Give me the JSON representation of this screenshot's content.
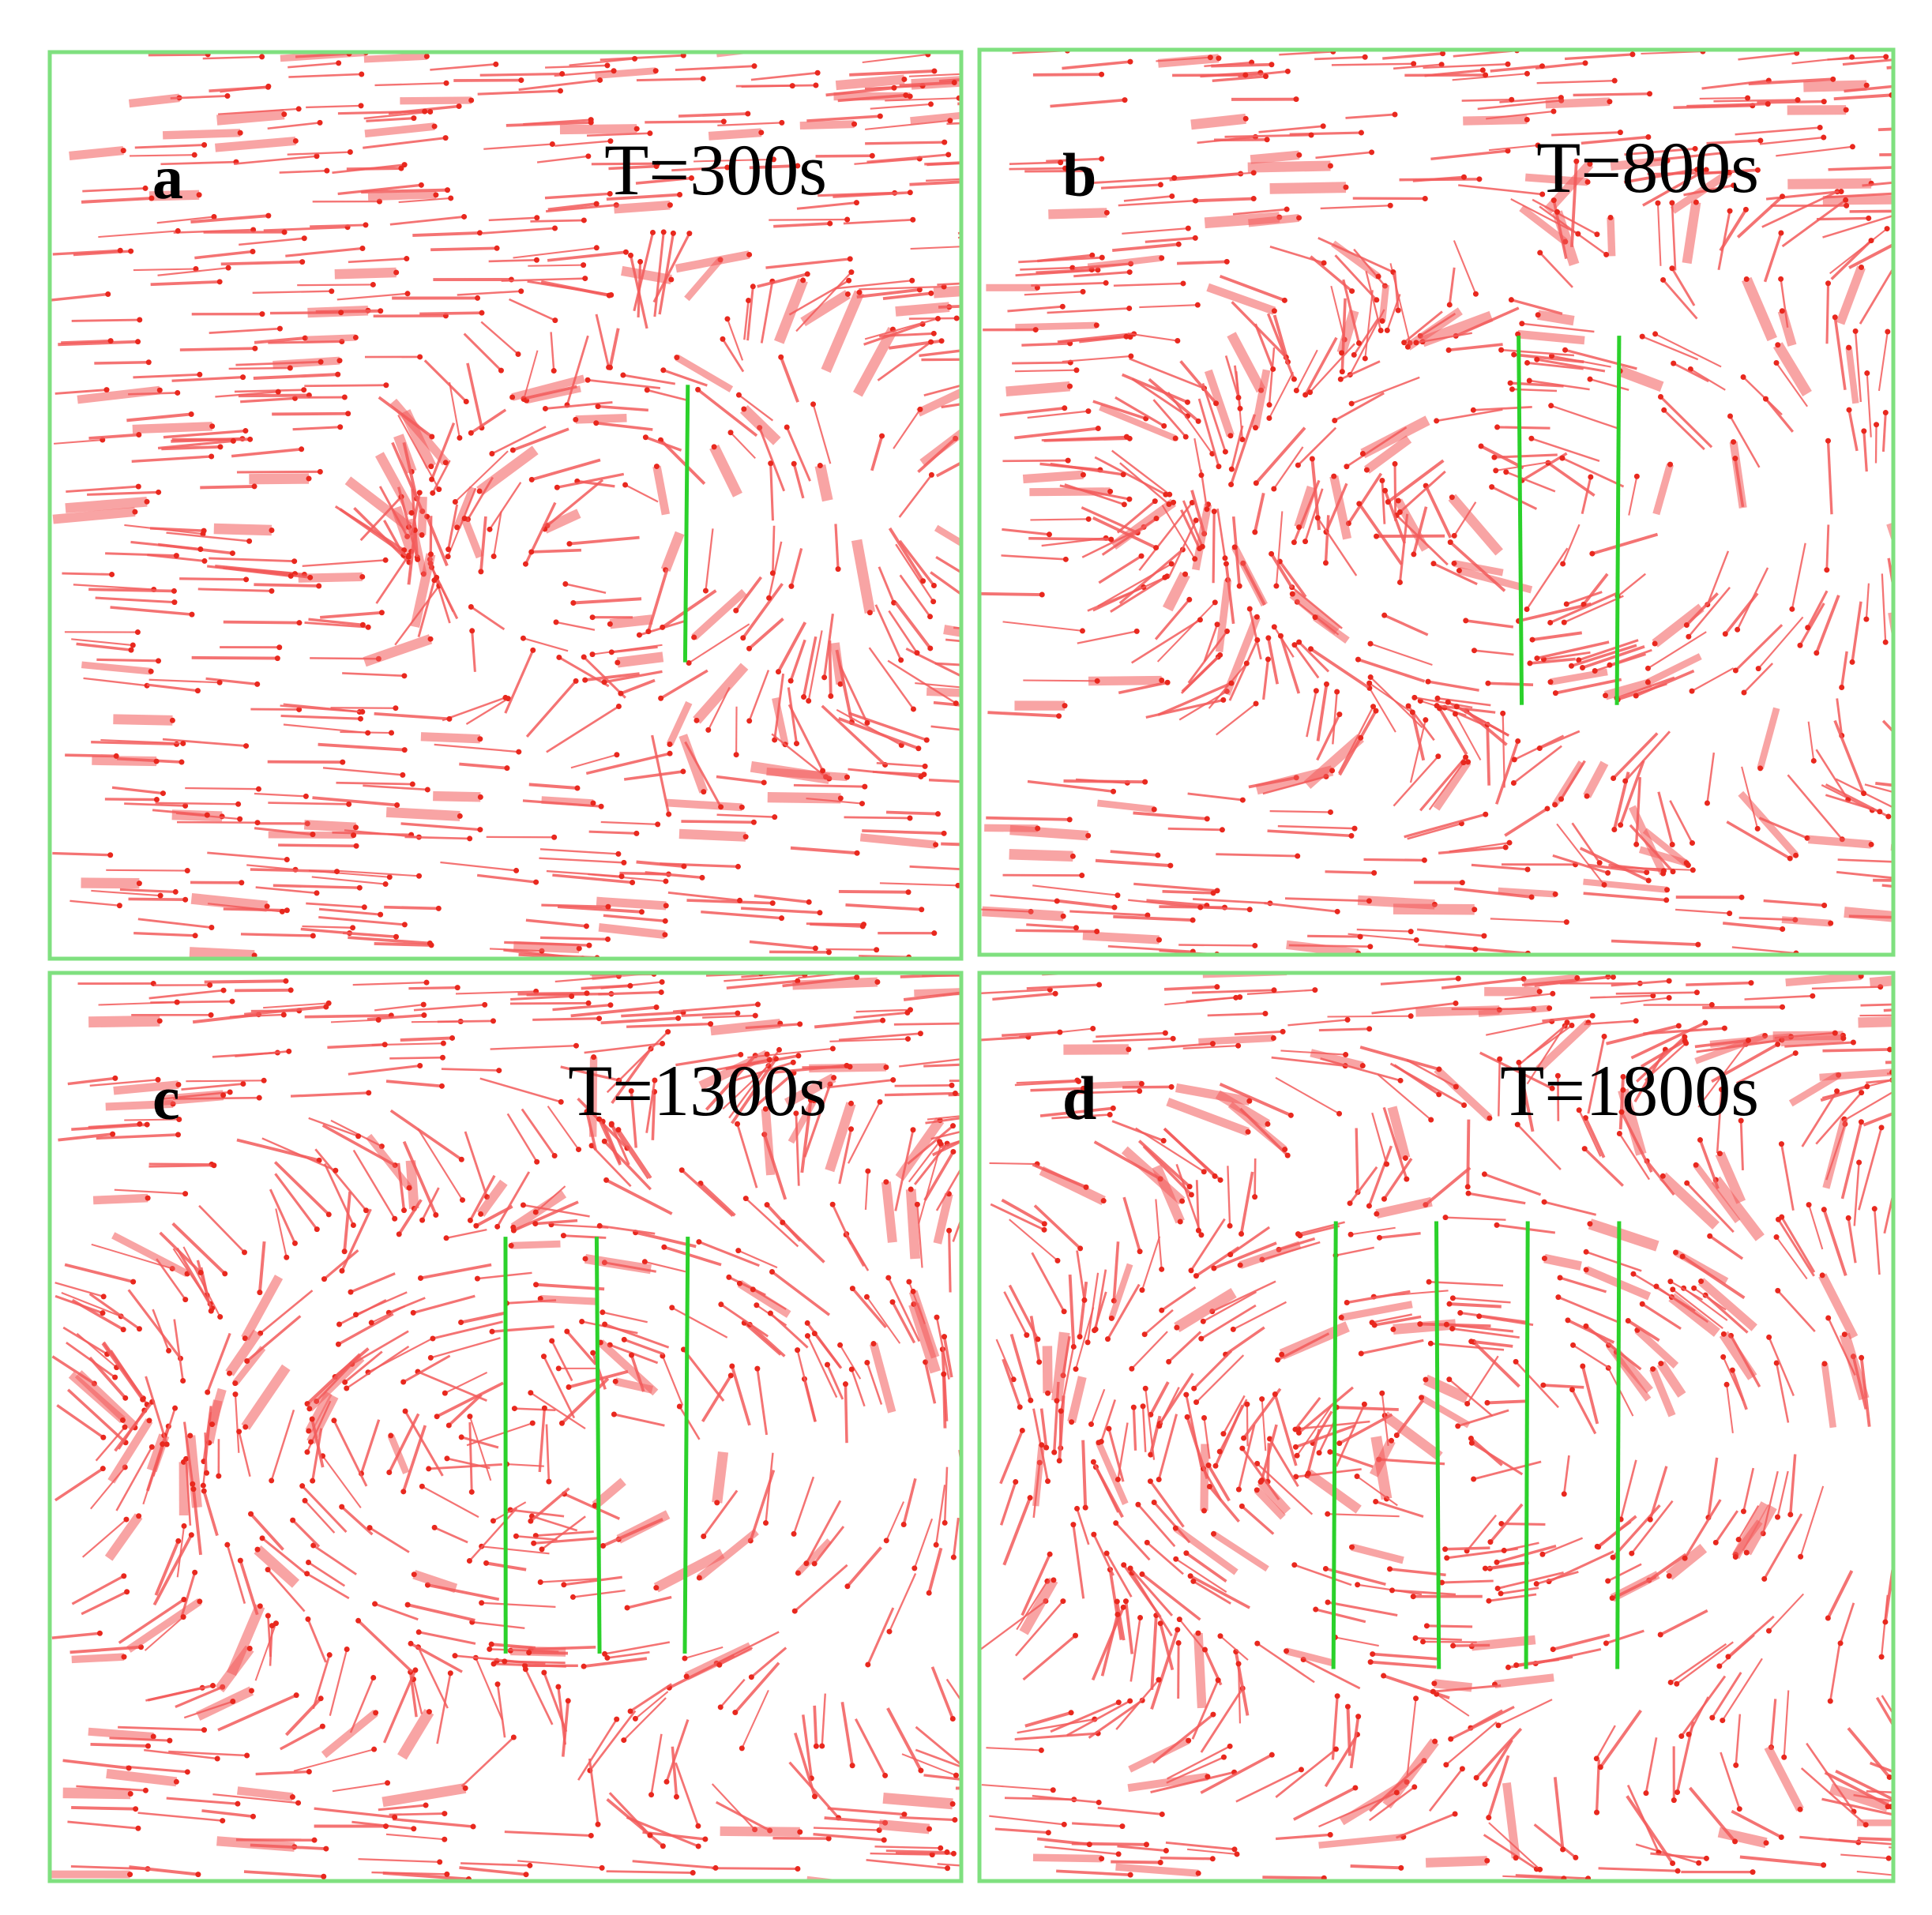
{
  "panels": [
    {
      "label": "a",
      "time": "T=300s"
    },
    {
      "label": "b",
      "time": "T=800s"
    },
    {
      "label": "c",
      "time": "T=1300s"
    },
    {
      "label": "d",
      "time": "T=1800s"
    }
  ]
}
